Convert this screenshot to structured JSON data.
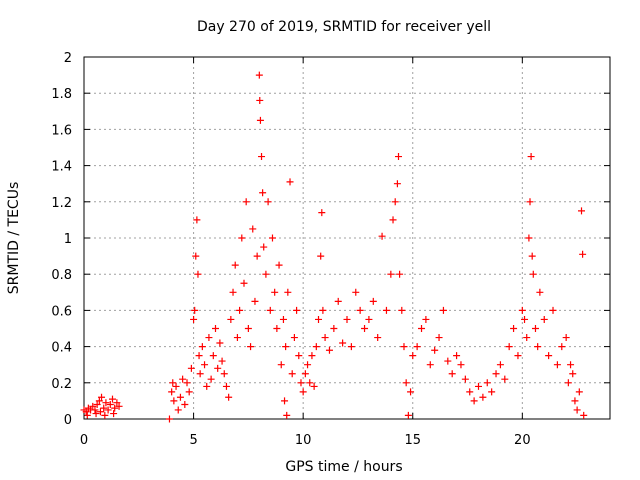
{
  "chart_data": {
    "type": "scatter",
    "title": "Day 270 of 2019, SRMTID for receiver yell",
    "xlabel": "GPS time / hours",
    "ylabel": "SRMTID / TECUs",
    "xlim": [
      0,
      24
    ],
    "ylim": [
      0,
      2
    ],
    "x_ticks": [
      0,
      5,
      10,
      15,
      20
    ],
    "x_tick_labels": [
      "0",
      "5",
      "10",
      "15",
      "20"
    ],
    "y_ticks": [
      0,
      0.2,
      0.4,
      0.6,
      0.8,
      1,
      1.2,
      1.4,
      1.6,
      1.8,
      2
    ],
    "y_tick_labels": [
      "0",
      "0.2",
      "0.4",
      "0.6",
      "0.8",
      "1",
      "1.2",
      "1.4",
      "1.6",
      "1.8",
      "2"
    ],
    "grid": true,
    "marker": "+",
    "marker_color": "#ff0000",
    "series": [
      {
        "name": "SRMTID",
        "points": [
          [
            0.0,
            0.05
          ],
          [
            0.1,
            0.04
          ],
          [
            0.2,
            0.06
          ],
          [
            0.3,
            0.05
          ],
          [
            0.4,
            0.07
          ],
          [
            0.5,
            0.05
          ],
          [
            0.6,
            0.08
          ],
          [
            0.7,
            0.1
          ],
          [
            0.8,
            0.12
          ],
          [
            0.9,
            0.06
          ],
          [
            1.0,
            0.09
          ],
          [
            1.1,
            0.05
          ],
          [
            1.2,
            0.08
          ],
          [
            1.3,
            0.11
          ],
          [
            1.4,
            0.06
          ],
          [
            1.5,
            0.09
          ],
          [
            1.6,
            0.07
          ],
          [
            0.15,
            0.02
          ],
          [
            0.55,
            0.03
          ],
          [
            0.95,
            0.02
          ],
          [
            1.35,
            0.03
          ],
          [
            0.75,
            0.04
          ],
          [
            3.9,
            0.0
          ],
          [
            4.0,
            0.15
          ],
          [
            4.05,
            0.2
          ],
          [
            4.1,
            0.1
          ],
          [
            4.2,
            0.18
          ],
          [
            4.3,
            0.05
          ],
          [
            4.4,
            0.12
          ],
          [
            4.5,
            0.22
          ],
          [
            4.6,
            0.08
          ],
          [
            4.7,
            0.2
          ],
          [
            4.8,
            0.15
          ],
          [
            4.9,
            0.28
          ],
          [
            5.0,
            0.55
          ],
          [
            5.05,
            0.6
          ],
          [
            5.1,
            0.9
          ],
          [
            5.15,
            1.1
          ],
          [
            5.2,
            0.8
          ],
          [
            5.25,
            0.35
          ],
          [
            5.3,
            0.25
          ],
          [
            5.4,
            0.4
          ],
          [
            5.5,
            0.3
          ],
          [
            5.6,
            0.18
          ],
          [
            5.7,
            0.45
          ],
          [
            5.8,
            0.22
          ],
          [
            5.9,
            0.35
          ],
          [
            6.0,
            0.5
          ],
          [
            6.1,
            0.28
          ],
          [
            6.2,
            0.42
          ],
          [
            6.3,
            0.32
          ],
          [
            6.4,
            0.25
          ],
          [
            6.5,
            0.18
          ],
          [
            6.6,
            0.12
          ],
          [
            6.7,
            0.55
          ],
          [
            6.8,
            0.7
          ],
          [
            6.9,
            0.85
          ],
          [
            7.0,
            0.45
          ],
          [
            7.1,
            0.6
          ],
          [
            7.2,
            1.0
          ],
          [
            7.3,
            0.75
          ],
          [
            7.4,
            1.2
          ],
          [
            7.5,
            0.5
          ],
          [
            7.6,
            0.4
          ],
          [
            7.7,
            1.05
          ],
          [
            7.8,
            0.65
          ],
          [
            7.9,
            0.9
          ],
          [
            8.0,
            1.9
          ],
          [
            8.02,
            1.76
          ],
          [
            8.05,
            1.65
          ],
          [
            8.1,
            1.45
          ],
          [
            8.15,
            1.25
          ],
          [
            8.2,
            0.95
          ],
          [
            8.3,
            0.8
          ],
          [
            8.4,
            1.2
          ],
          [
            8.5,
            0.6
          ],
          [
            8.6,
            1.0
          ],
          [
            8.7,
            0.7
          ],
          [
            8.8,
            0.5
          ],
          [
            8.9,
            0.85
          ],
          [
            9.0,
            0.3
          ],
          [
            9.1,
            0.55
          ],
          [
            9.2,
            0.4
          ],
          [
            9.3,
            0.7
          ],
          [
            9.4,
            1.31
          ],
          [
            9.5,
            0.25
          ],
          [
            9.6,
            0.45
          ],
          [
            9.7,
            0.6
          ],
          [
            9.8,
            0.35
          ],
          [
            9.9,
            0.2
          ],
          [
            9.25,
            0.02
          ],
          [
            9.15,
            0.1
          ],
          [
            10.0,
            0.15
          ],
          [
            10.1,
            0.25
          ],
          [
            10.2,
            0.3
          ],
          [
            10.3,
            0.2
          ],
          [
            10.4,
            0.35
          ],
          [
            10.5,
            0.18
          ],
          [
            10.6,
            0.4
          ],
          [
            10.7,
            0.55
          ],
          [
            10.8,
            0.9
          ],
          [
            10.85,
            1.14
          ],
          [
            10.9,
            0.6
          ],
          [
            11.0,
            0.45
          ],
          [
            11.2,
            0.38
          ],
          [
            11.4,
            0.5
          ],
          [
            11.6,
            0.65
          ],
          [
            11.8,
            0.42
          ],
          [
            12.0,
            0.55
          ],
          [
            12.2,
            0.4
          ],
          [
            12.4,
            0.7
          ],
          [
            12.6,
            0.6
          ],
          [
            12.8,
            0.5
          ],
          [
            13.0,
            0.55
          ],
          [
            13.2,
            0.65
          ],
          [
            13.4,
            0.45
          ],
          [
            13.6,
            1.01
          ],
          [
            13.8,
            0.6
          ],
          [
            14.0,
            0.8
          ],
          [
            14.1,
            1.1
          ],
          [
            14.2,
            1.2
          ],
          [
            14.3,
            1.3
          ],
          [
            14.35,
            1.45
          ],
          [
            14.4,
            0.8
          ],
          [
            14.5,
            0.6
          ],
          [
            14.6,
            0.4
          ],
          [
            14.7,
            0.2
          ],
          [
            14.8,
            0.02
          ],
          [
            14.9,
            0.15
          ],
          [
            15.0,
            0.35
          ],
          [
            15.2,
            0.4
          ],
          [
            15.4,
            0.5
          ],
          [
            15.6,
            0.55
          ],
          [
            15.8,
            0.3
          ],
          [
            16.0,
            0.38
          ],
          [
            16.2,
            0.45
          ],
          [
            16.4,
            0.6
          ],
          [
            16.6,
            0.32
          ],
          [
            16.8,
            0.25
          ],
          [
            17.0,
            0.35
          ],
          [
            17.2,
            0.3
          ],
          [
            17.4,
            0.22
          ],
          [
            17.6,
            0.15
          ],
          [
            17.8,
            0.1
          ],
          [
            18.0,
            0.18
          ],
          [
            18.2,
            0.12
          ],
          [
            18.4,
            0.2
          ],
          [
            18.6,
            0.15
          ],
          [
            18.8,
            0.25
          ],
          [
            19.0,
            0.3
          ],
          [
            19.2,
            0.22
          ],
          [
            19.4,
            0.4
          ],
          [
            19.6,
            0.5
          ],
          [
            19.8,
            0.35
          ],
          [
            20.0,
            0.6
          ],
          [
            20.1,
            0.55
          ],
          [
            20.2,
            0.45
          ],
          [
            20.3,
            1.0
          ],
          [
            20.35,
            1.2
          ],
          [
            20.4,
            1.45
          ],
          [
            20.45,
            0.9
          ],
          [
            20.5,
            0.8
          ],
          [
            20.6,
            0.5
          ],
          [
            20.7,
            0.4
          ],
          [
            20.8,
            0.7
          ],
          [
            21.0,
            0.55
          ],
          [
            21.2,
            0.35
          ],
          [
            21.4,
            0.6
          ],
          [
            21.6,
            0.3
          ],
          [
            21.8,
            0.4
          ],
          [
            22.0,
            0.45
          ],
          [
            22.1,
            0.2
          ],
          [
            22.2,
            0.3
          ],
          [
            22.3,
            0.25
          ],
          [
            22.4,
            0.1
          ],
          [
            22.5,
            0.05
          ],
          [
            22.6,
            0.15
          ],
          [
            22.7,
            1.15
          ],
          [
            22.75,
            0.91
          ],
          [
            22.8,
            0.02
          ]
        ]
      }
    ]
  }
}
